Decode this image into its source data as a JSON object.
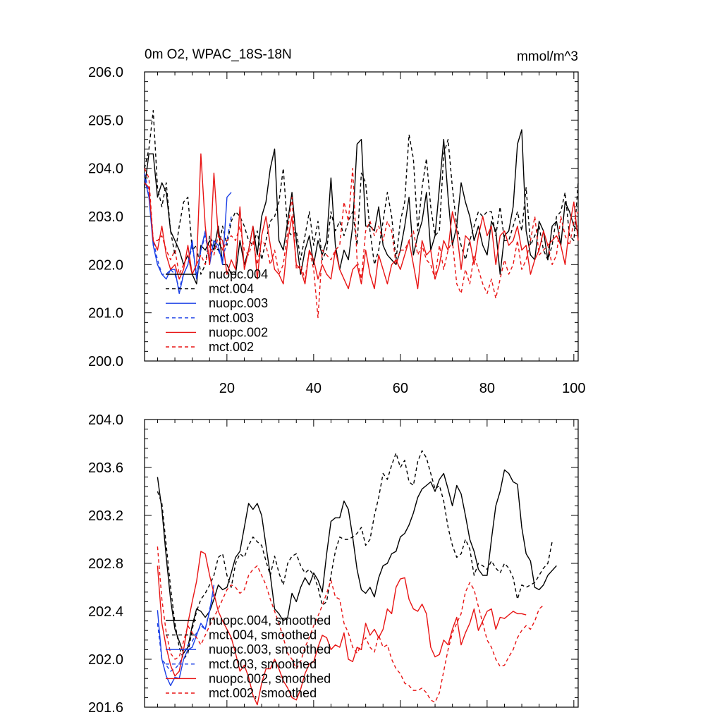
{
  "chart_data": [
    {
      "type": "line",
      "title": "0m O2, WPAC_18S-18N",
      "units": "mmol/m^3",
      "xlim": [
        1,
        101
      ],
      "ylim": [
        200.0,
        206.0
      ],
      "x_ticks": [
        20,
        40,
        60,
        80,
        100
      ],
      "x_tick_labels": [
        "20",
        "40",
        "60",
        "80",
        "100"
      ],
      "y_ticks": [
        200,
        201,
        202,
        203,
        204,
        205,
        206
      ],
      "y_tick_labels": [
        "200.0",
        "201.0",
        "202.0",
        "203.0",
        "204.0",
        "205.0",
        "206.0"
      ],
      "legend_position": "bottom-left",
      "series": [
        {
          "name": "nuopc.004",
          "color": "#000000",
          "dash": "solid",
          "x_start": 1,
          "values": [
            203.6,
            204.3,
            204.3,
            203.4,
            203.7,
            203.5,
            202.7,
            202.5,
            202.3,
            202.0,
            202.2,
            201.8,
            201.6,
            202.4,
            202.3,
            202.5,
            202.3,
            202.8,
            202.0,
            202.0,
            201.8,
            201.8,
            202.5,
            202.0,
            202.3,
            202.8,
            202.2,
            203.0,
            203.3,
            204.0,
            204.4,
            202.5,
            202.3,
            202.9,
            203.5,
            202.5,
            201.8,
            202.3,
            202.6,
            202.0,
            202.5,
            202.2,
            202.5,
            203.8,
            202.4,
            201.9,
            202.3,
            202.1,
            202.8,
            204.5,
            204.6,
            202.8,
            202.8,
            202.7,
            203.2,
            202.4,
            202.2,
            202.1,
            202.0,
            202.3,
            202.8,
            203.4,
            202.2,
            202.6,
            202.9,
            203.5,
            202.3,
            202.6,
            203.6,
            204.6,
            203.4,
            202.4,
            202.8,
            203.7,
            203.3,
            203.0,
            202.5,
            202.8,
            202.4,
            202.2,
            202.9,
            202.7,
            201.8,
            202.6,
            202.7,
            203.2,
            204.5,
            204.8,
            202.7,
            202.2,
            202.1,
            202.9,
            202.7,
            202.1,
            202.8,
            202.9,
            202.4,
            203.3,
            203.1,
            202.8,
            202.7
          ]
        },
        {
          "name": "mct.004",
          "color": "#000000",
          "dash": "dashed",
          "x_start": 1,
          "values": [
            204.0,
            204.4,
            205.2,
            203.6,
            203.2,
            203.7,
            202.7,
            202.2,
            202.8,
            203.3,
            203.4,
            202.3,
            202.4,
            201.8,
            202.0,
            202.6,
            202.4,
            202.3,
            202.8,
            202.4,
            202.9,
            203.1,
            203.0,
            202.8,
            202.5,
            202.4,
            202.7,
            202.1,
            202.5,
            202.9,
            203.0,
            203.3,
            204.0,
            202.7,
            202.6,
            202.7,
            202.1,
            202.6,
            203.1,
            202.4,
            202.9,
            202.1,
            202.3,
            203.1,
            202.7,
            202.9,
            202.6,
            202.9,
            203.1,
            202.4,
            203.9,
            203.7,
            202.7,
            202.0,
            202.3,
            202.9,
            203.5,
            203.0,
            202.1,
            202.9,
            203.3,
            204.7,
            204.2,
            202.7,
            203.6,
            204.2,
            203.2,
            202.6,
            202.7,
            204.3,
            204.6,
            203.6,
            202.8,
            202.4,
            202.1,
            202.5,
            202.8,
            203.1,
            203.0,
            203.1,
            203.1,
            202.6,
            203.2,
            202.5,
            202.5,
            202.8,
            203.1,
            202.7,
            203.6,
            202.4,
            202.6,
            202.8,
            202.3,
            202.1,
            202.4,
            203.0,
            203.1,
            203.5,
            202.6,
            202.5,
            203.7
          ]
        },
        {
          "name": "nuopc.003",
          "color": "#1a3fe6",
          "dash": "solid",
          "x_start": 1,
          "values": [
            203.8,
            203.4,
            202.4,
            202.0,
            201.8,
            201.7,
            201.9,
            201.9,
            201.4,
            201.8,
            202.0,
            202.5,
            201.7,
            202.3,
            202.7,
            202.0,
            202.5,
            202.4,
            202.0,
            203.4,
            203.5
          ]
        },
        {
          "name": "mct.003",
          "color": "#1a3fe6",
          "dash": "dashed",
          "x_start": 1,
          "values": [
            203.9,
            203.5,
            202.5,
            202.1,
            201.8,
            201.8,
            201.9,
            201.8,
            201.5,
            201.8,
            202.0,
            202.4,
            201.8,
            202.3,
            202.6,
            202.1,
            202.5,
            202.3,
            202.1,
            202.5,
            203.0
          ]
        },
        {
          "name": "nuopc.002",
          "color": "#e81414",
          "dash": "solid",
          "x_start": 1,
          "values": [
            203.7,
            203.6,
            202.5,
            202.3,
            202.8,
            202.2,
            201.9,
            202.0,
            201.7,
            201.9,
            202.4,
            201.8,
            202.0,
            204.3,
            202.8,
            202.0,
            203.9,
            202.6,
            202.5,
            201.8,
            202.1,
            201.9,
            203.2,
            201.9,
            202.3,
            202.8,
            201.7,
            202.6,
            203.0,
            202.4,
            201.9,
            201.8,
            201.6,
            202.5,
            203.0,
            202.0,
            201.9,
            201.6,
            202.3,
            202.1,
            201.7,
            202.0,
            201.8,
            201.7,
            202.3,
            201.9,
            201.7,
            201.5,
            201.9,
            202.0,
            201.6,
            202.3,
            201.8,
            201.5,
            202.2,
            201.9,
            201.6,
            202.0,
            202.1,
            201.9,
            202.2,
            202.5,
            202.0,
            201.5,
            202.5,
            202.2,
            202.3,
            201.7,
            202.0,
            202.5,
            202.3,
            203.1,
            202.7,
            201.9,
            202.6,
            202.5,
            202.0,
            202.6,
            203.0,
            202.6,
            202.8,
            202.0,
            202.6,
            202.7,
            202.4,
            202.5,
            202.8,
            202.3,
            202.4,
            201.8,
            202.1,
            202.3,
            202.7,
            202.4,
            202.5,
            202.6,
            202.4,
            202.0,
            202.8,
            203.3,
            202.5
          ]
        },
        {
          "name": "mct.002",
          "color": "#e81414",
          "dash": "dashed",
          "x_start": 1,
          "values": [
            204.0,
            203.8,
            202.5,
            202.5,
            202.6,
            202.3,
            202.1,
            202.3,
            201.8,
            202.0,
            202.2,
            201.8,
            202.0,
            202.2,
            202.0,
            202.4,
            202.2,
            202.6,
            202.3,
            202.5,
            202.6,
            202.5,
            202.8,
            202.3,
            202.2,
            202.5,
            202.0,
            202.5,
            202.4,
            202.0,
            202.3,
            201.8,
            202.0,
            202.7,
            203.4,
            201.9,
            202.0,
            201.7,
            202.3,
            201.9,
            200.9,
            202.3,
            202.2,
            202.1,
            202.3,
            202.4,
            203.3,
            202.9,
            204.0,
            202.1,
            201.7,
            202.7,
            202.9,
            202.6,
            202.8,
            202.5,
            202.9,
            202.7,
            202.0,
            202.3,
            202.3,
            202.5,
            202.7,
            202.2,
            202.4,
            202.1,
            202.0,
            201.7,
            202.4,
            201.9,
            202.3,
            202.5,
            201.6,
            201.4,
            201.9,
            201.6,
            202.2,
            201.9,
            201.6,
            201.4,
            201.7,
            201.3,
            201.7,
            202.1,
            201.8,
            202.0,
            202.5,
            201.9,
            202.1,
            202.5,
            203.0,
            202.2,
            202.3,
            202.4,
            202.0,
            202.2,
            203.0,
            202.6,
            202.4,
            202.9,
            203.1
          ]
        }
      ]
    },
    {
      "type": "line",
      "title": "",
      "xlim": [
        1,
        101
      ],
      "ylim": [
        201.6,
        204.0
      ],
      "x_ticks": [
        20,
        40,
        60,
        80,
        100
      ],
      "y_ticks": [
        201.6,
        202.0,
        202.4,
        202.8,
        203.2,
        203.6,
        204.0
      ],
      "y_tick_labels": [
        "201.6",
        "202.0",
        "202.4",
        "202.8",
        "203.2",
        "203.6",
        "204.0"
      ],
      "legend_position": "bottom-left",
      "series": [
        {
          "name": "nuopc.004, smoothed",
          "color": "#000000",
          "dash": "solid",
          "x_start": 4,
          "values": [
            203.52,
            203.25,
            202.85,
            202.5,
            202.25,
            202.15,
            202.05,
            202.1,
            202.28,
            202.42,
            202.4,
            202.35,
            202.4,
            202.5,
            202.62,
            202.58,
            202.6,
            202.72,
            202.85,
            202.9,
            203.1,
            203.3,
            203.25,
            203.3,
            203.2,
            202.95,
            202.7,
            202.42,
            202.38,
            202.32,
            202.35,
            202.55,
            202.48,
            202.6,
            202.68,
            202.62,
            202.72,
            202.66,
            202.56,
            202.88,
            203.15,
            203.18,
            203.18,
            203.32,
            203.25,
            203.02,
            202.75,
            202.58,
            202.55,
            202.6,
            202.52,
            202.68,
            202.78,
            202.8,
            202.88,
            202.9,
            203.02,
            203.05,
            203.12,
            203.22,
            203.35,
            203.42,
            203.45,
            203.48,
            203.4,
            203.5,
            203.55,
            203.42,
            203.28,
            203.45,
            203.38,
            203.2,
            203.0,
            202.9,
            202.75,
            202.7,
            202.7,
            203.0,
            203.28,
            203.4,
            203.58,
            203.55,
            203.48,
            203.46,
            203.1,
            202.88,
            202.82,
            202.6,
            202.58,
            202.62,
            202.7,
            202.74,
            202.78
          ]
        },
        {
          "name": "mct.004, smoothed",
          "color": "#000000",
          "dash": "dashed",
          "x_start": 4,
          "values": [
            203.4,
            203.3,
            202.95,
            202.6,
            202.3,
            202.1,
            202.0,
            202.05,
            202.25,
            202.4,
            202.5,
            202.55,
            202.62,
            202.7,
            202.85,
            202.88,
            202.7,
            202.6,
            202.8,
            202.88,
            202.85,
            202.95,
            203.02,
            202.98,
            202.95,
            202.82,
            202.7,
            202.86,
            202.72,
            202.62,
            202.8,
            202.86,
            202.88,
            202.78,
            202.72,
            202.75,
            202.7,
            202.6,
            202.45,
            202.48,
            202.7,
            202.9,
            203.02,
            203.0,
            203.0,
            203.02,
            203.05,
            203.1,
            202.95,
            203.0,
            203.2,
            203.35,
            203.55,
            203.5,
            203.62,
            203.72,
            203.6,
            203.66,
            203.48,
            203.45,
            203.65,
            203.74,
            203.68,
            203.55,
            203.42,
            203.45,
            203.32,
            203.1,
            202.95,
            202.85,
            202.88,
            203.0,
            202.92,
            202.7,
            202.8,
            202.78,
            202.75,
            202.82,
            202.76,
            202.72,
            202.8,
            202.76,
            202.68,
            202.5,
            202.62,
            202.6,
            202.62,
            202.64,
            202.7,
            202.76,
            202.8,
            202.98
          ]
        },
        {
          "name": "nuopc.003, smoothed",
          "color": "#1a3fe6",
          "dash": "solid",
          "x_start": 4,
          "values": [
            202.41,
            202.0,
            201.86,
            201.78,
            201.85,
            201.84,
            202.0,
            202.08,
            202.1,
            202.2,
            202.3,
            202.25,
            202.4,
            202.62
          ]
        },
        {
          "name": "mct.003, smoothed",
          "color": "#1a3fe6",
          "dash": "dashed",
          "x_start": 4,
          "values": [
            202.3,
            202.0,
            201.95,
            201.9,
            201.92,
            201.96,
            202.05,
            202.12,
            202.15,
            202.22,
            202.28,
            202.25,
            202.42,
            202.55
          ]
        },
        {
          "name": "nuopc.002, smoothed",
          "color": "#e81414",
          "dash": "solid",
          "x_start": 4,
          "values": [
            202.78,
            202.3,
            202.1,
            201.95,
            201.86,
            201.9,
            202.08,
            202.3,
            202.48,
            202.65,
            202.9,
            202.88,
            202.7,
            202.55,
            202.4,
            202.32,
            202.25,
            202.18,
            202.05,
            201.9,
            201.95,
            201.85,
            201.7,
            201.62,
            201.8,
            201.92,
            201.92,
            202.0,
            201.92,
            201.82,
            201.76,
            201.68,
            201.66,
            201.75,
            201.88,
            201.96,
            201.98,
            202.1,
            202.2,
            202.18,
            202.08,
            202.12,
            202.1,
            202.22,
            202.0,
            201.98,
            202.1,
            202.08,
            202.3,
            202.2,
            202.25,
            202.18,
            202.25,
            202.42,
            202.38,
            202.6,
            202.67,
            202.68,
            202.5,
            202.42,
            202.4,
            202.46,
            202.38,
            202.1,
            202.02,
            202.04,
            202.16,
            202.12,
            202.25,
            202.35,
            202.12,
            202.22,
            202.3,
            202.42,
            202.24,
            202.32,
            202.4,
            202.42,
            202.25,
            202.35,
            202.34,
            202.37,
            202.4,
            202.38,
            202.38,
            202.37
          ]
        },
        {
          "name": "mct.002, smoothed",
          "color": "#e81414",
          "dash": "dashed",
          "x_start": 4,
          "values": [
            202.94,
            202.5,
            202.22,
            202.05,
            202.0,
            202.02,
            202.15,
            202.28,
            202.22,
            202.18,
            202.12,
            202.2,
            202.28,
            202.35,
            202.42,
            202.5,
            202.58,
            202.62,
            202.6,
            202.55,
            202.58,
            202.7,
            202.75,
            202.78,
            202.7,
            202.62,
            202.5,
            202.4,
            202.3,
            202.18,
            202.05,
            202.0,
            201.92,
            201.98,
            202.1,
            202.18,
            202.28,
            202.36,
            202.45,
            202.55,
            202.66,
            202.52,
            202.5,
            202.3,
            202.22,
            202.1,
            202.05,
            202.12,
            202.18,
            202.1,
            202.06,
            202.2,
            202.1,
            202.12,
            202.0,
            201.92,
            201.88,
            201.8,
            201.78,
            201.74,
            201.74,
            201.76,
            201.72,
            201.66,
            201.64,
            201.72,
            201.9,
            202.08,
            202.22,
            202.3,
            202.38,
            202.56,
            202.64,
            202.58,
            202.44,
            202.3,
            202.16,
            202.1,
            202.0,
            201.94,
            201.95,
            202.02,
            202.08,
            202.18,
            202.24,
            202.28,
            202.25,
            202.32,
            202.42,
            202.45
          ]
        }
      ]
    }
  ]
}
